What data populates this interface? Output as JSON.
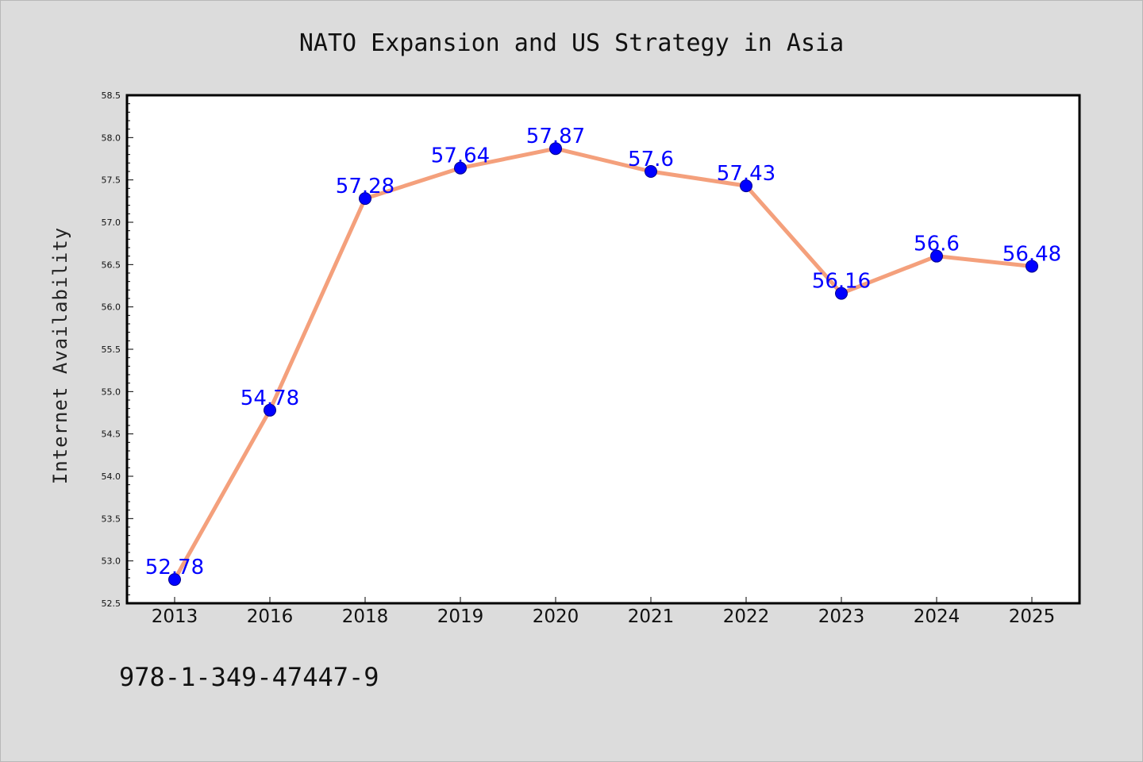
{
  "chart_data": {
    "type": "line",
    "title": "NATO Expansion and US Strategy in Asia",
    "xlabel": "",
    "ylabel": "Internet Availability",
    "categories": [
      "2013",
      "2016",
      "2018",
      "2019",
      "2020",
      "2021",
      "2022",
      "2023",
      "2024",
      "2025"
    ],
    "series": [
      {
        "values": [
          52.78,
          54.78,
          57.28,
          57.64,
          57.87,
          57.6,
          57.43,
          56.16,
          56.6,
          56.48
        ],
        "line_color": "#f4a07c",
        "marker_color": "#0000ff"
      }
    ],
    "data_labels": [
      "52.78",
      "54.78",
      "57.28",
      "57.64",
      "57.87",
      "57.6",
      "57.43",
      "56.16",
      "56.6",
      "56.48"
    ],
    "ylim": [
      52.5,
      58.5
    ],
    "yticks": [
      "52.5",
      "53.0",
      "53.5",
      "54.0",
      "54.5",
      "55.0",
      "55.5",
      "56.0",
      "56.5",
      "57.0",
      "57.5",
      "58.0",
      "58.5"
    ],
    "grid": false,
    "legend": "none",
    "label_color": "#0000ff"
  },
  "footer": {
    "isbn": "978-1-349-47447-9"
  }
}
